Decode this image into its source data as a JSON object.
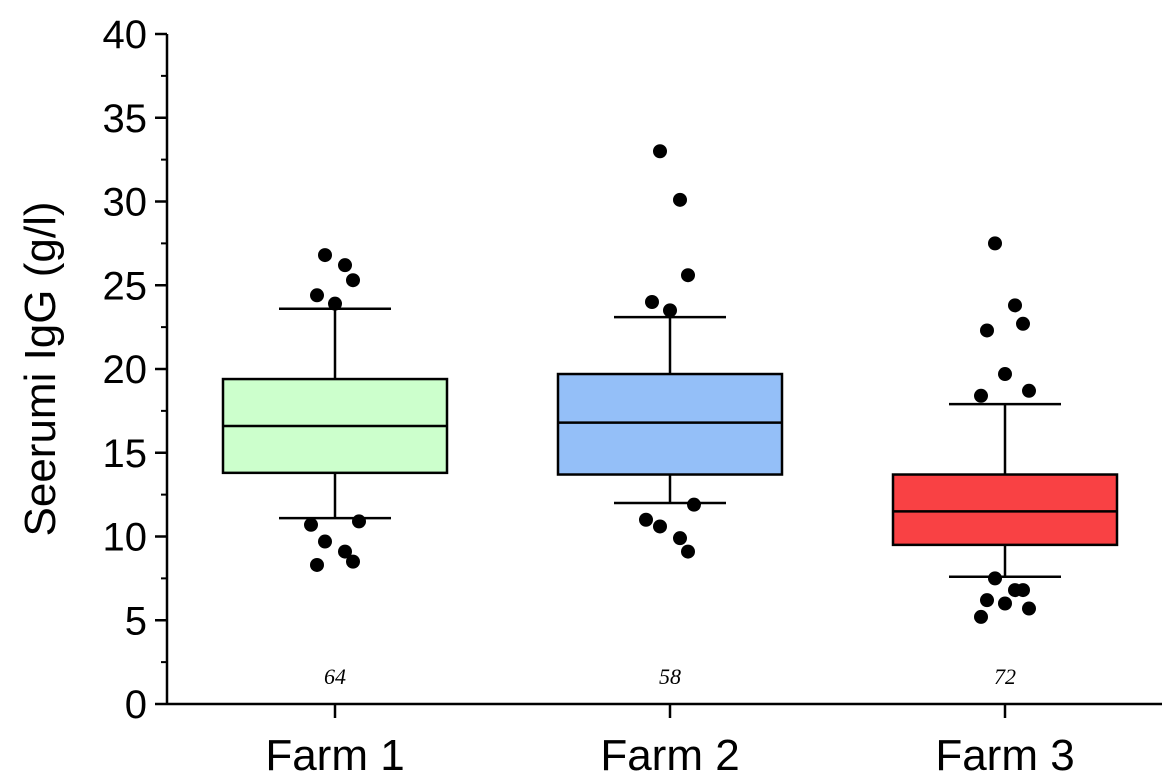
{
  "chart_data": {
    "type": "box",
    "title": "",
    "xlabel": "",
    "ylabel": "Seerumi IgG (g/l)",
    "ylim": [
      0,
      40
    ],
    "yticks": [
      0,
      5,
      10,
      15,
      20,
      25,
      30,
      35,
      40
    ],
    "categories": [
      "Farm 1",
      "Farm 2",
      "Farm 3"
    ],
    "grid": false,
    "boxes": [
      {
        "category": "Farm 1",
        "color": "#ccffcc",
        "n_label": "64",
        "whisker_low": 11.1,
        "q1": 13.8,
        "median": 16.6,
        "q3": 19.4,
        "whisker_high": 23.6,
        "outliers": [
          26.8,
          26.2,
          25.3,
          24.4,
          23.9,
          10.9,
          10.7,
          9.7,
          9.1,
          8.5,
          8.3
        ]
      },
      {
        "category": "Farm 2",
        "color": "#94bff8",
        "n_label": "58",
        "whisker_low": 12.0,
        "q1": 13.7,
        "median": 16.8,
        "q3": 19.7,
        "whisker_high": 23.1,
        "outliers": [
          33.0,
          30.1,
          25.6,
          24.0,
          23.5,
          11.9,
          11.0,
          10.6,
          9.9,
          9.1
        ]
      },
      {
        "category": "Farm 3",
        "color": "#f94144",
        "n_label": "72",
        "whisker_low": 7.6,
        "q1": 9.5,
        "median": 11.5,
        "q3": 13.7,
        "whisker_high": 17.9,
        "outliers": [
          27.5,
          23.8,
          22.7,
          22.3,
          19.7,
          18.7,
          18.4,
          7.5,
          6.8,
          6.8,
          6.2,
          6.0,
          5.7,
          5.2
        ]
      }
    ]
  }
}
